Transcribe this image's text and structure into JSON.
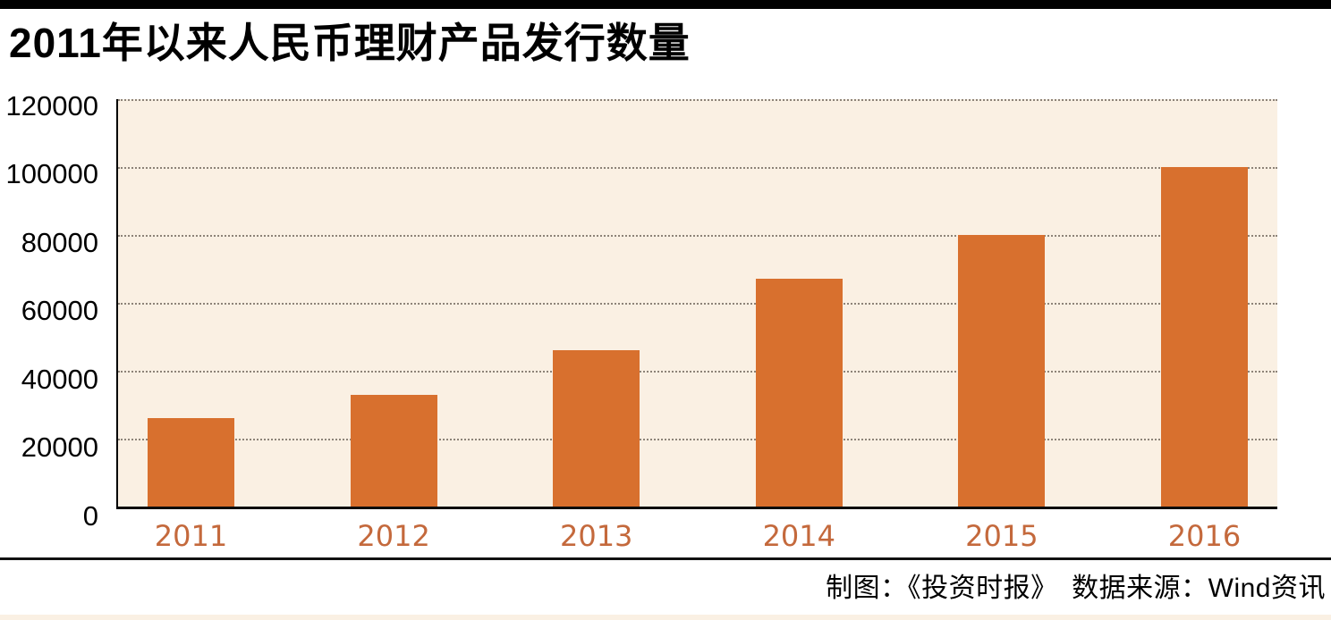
{
  "header": {
    "title": "2011年以来人民币理财产品发行数量"
  },
  "footer": {
    "credits": "制图：《投资时报》　数据来源：Wind资讯"
  },
  "colors": {
    "bar": "#d8702e",
    "plot_background": "#faf0e3",
    "x_tick_label": "#c4693c",
    "gridline": "#8d8378",
    "axis": "#000000",
    "accent_bars": "#000000"
  },
  "chart_data": {
    "type": "bar",
    "title": "2011年以来人民币理财产品发行数量",
    "categories": [
      "2011",
      "2012",
      "2013",
      "2014",
      "2015",
      "2016"
    ],
    "values": [
      26000,
      33000,
      46000,
      67000,
      80000,
      100000
    ],
    "xlabel": "",
    "ylabel": "",
    "ylim": [
      0,
      120000
    ],
    "ytick_interval": 20000,
    "ytick_labels": [
      "0",
      "20000",
      "40000",
      "60000",
      "80000",
      "100000",
      "120000"
    ],
    "grid": "horizontal-dotted",
    "legend": "none",
    "bar_color": "#d8702e",
    "plot_bg": "#faf0e3",
    "xtick_color": "#c4693c"
  }
}
